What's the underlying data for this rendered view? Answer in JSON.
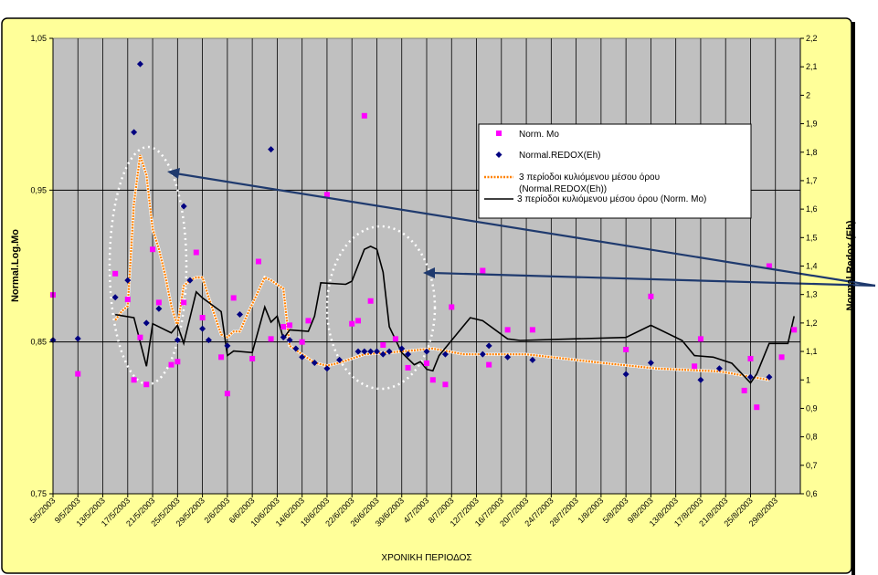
{
  "chart_data": {
    "type": "line",
    "title": "",
    "xlabel": "ΧΡΟΝΙΚΗ ΠΕΡΙΟΔΟΣ",
    "ylabel": "Normal.Log.Mo",
    "y2label": "Normal.Redox (Eh)",
    "ylim": [
      0.75,
      1.05
    ],
    "y2lim": [
      0.6,
      2.2
    ],
    "yticks": [
      "0,75",
      "0,85",
      "0,95",
      "1,05"
    ],
    "y2ticks": [
      "0,6",
      "0,7",
      "0,8",
      "0,9",
      "1",
      "1,1",
      "1,2",
      "1,3",
      "1,4",
      "1,5",
      "1,6",
      "1,7",
      "1,8",
      "1,9",
      "2",
      "2,1",
      "2,2"
    ],
    "x_start": "2003-05-05",
    "x_end": "2003-09-02",
    "x_tick_dates": [
      "2003-05-05",
      "2003-05-09",
      "2003-05-13",
      "2003-05-17",
      "2003-05-21",
      "2003-05-25",
      "2003-05-29",
      "2003-06-02",
      "2003-06-06",
      "2003-06-10",
      "2003-06-14",
      "2003-06-18",
      "2003-06-22",
      "2003-06-26",
      "2003-06-30",
      "2003-07-04",
      "2003-07-08",
      "2003-07-12",
      "2003-07-16",
      "2003-07-20",
      "2003-07-24",
      "2003-07-28",
      "2003-08-01",
      "2003-08-05",
      "2003-08-09",
      "2003-08-13",
      "2003-08-17",
      "2003-08-21",
      "2003-08-25",
      "2003-08-29"
    ],
    "x_tick_labels": [
      "5/5/2003",
      "9/5/2003",
      "13/5/2003",
      "17/5/2003",
      "21/5/2003",
      "25/5/2003",
      "29/5/2003",
      "2/6/2003",
      "6/6/2003",
      "10/6/2003",
      "14/6/2003",
      "18/6/2003",
      "22/6/2003",
      "26/6/2003",
      "30/6/2003",
      "4/7/2003",
      "8/7/2003",
      "12/7/2003",
      "16/7/2003",
      "20/7/2003",
      "24/7/2003",
      "28/7/2003",
      "1/8/2003",
      "5/8/2003",
      "9/8/2003",
      "13/8/2003",
      "17/8/2003",
      "21/8/2003",
      "25/8/2003",
      "29/8/2003"
    ],
    "grid": true,
    "legend_position": "upper-right-of-center",
    "annotations": "two dotted white ellipses with dark blue arrows pointing to them",
    "series": [
      {
        "name": "Norm. Mo",
        "kind": "scatter",
        "axis": "left",
        "marker": "square",
        "color": "#ff00ff",
        "points": [
          [
            "2003-05-05",
            0.881
          ],
          [
            "2003-05-09",
            0.829
          ],
          [
            "2003-05-15",
            0.895
          ],
          [
            "2003-05-17",
            0.878
          ],
          [
            "2003-05-18",
            0.825
          ],
          [
            "2003-05-19",
            0.853
          ],
          [
            "2003-05-20",
            0.822
          ],
          [
            "2003-05-21",
            0.911
          ],
          [
            "2003-05-22",
            0.876
          ],
          [
            "2003-05-24",
            0.835
          ],
          [
            "2003-05-25",
            0.837
          ],
          [
            "2003-05-26",
            0.876
          ],
          [
            "2003-05-28",
            0.909
          ],
          [
            "2003-05-29",
            0.866
          ],
          [
            "2003-06-01",
            0.84
          ],
          [
            "2003-06-02",
            0.816
          ],
          [
            "2003-06-03",
            0.879
          ],
          [
            "2003-06-06",
            0.839
          ],
          [
            "2003-06-07",
            0.903
          ],
          [
            "2003-06-09",
            0.852
          ],
          [
            "2003-06-11",
            0.86
          ],
          [
            "2003-06-12",
            0.861
          ],
          [
            "2003-06-14",
            0.85
          ],
          [
            "2003-06-15",
            0.864
          ],
          [
            "2003-06-18",
            0.947
          ],
          [
            "2003-06-22",
            0.862
          ],
          [
            "2003-06-23",
            0.864
          ],
          [
            "2003-06-24",
            0.999
          ],
          [
            "2003-06-25",
            0.877
          ],
          [
            "2003-06-27",
            0.848
          ],
          [
            "2003-06-29",
            0.852
          ],
          [
            "2003-07-01",
            0.833
          ],
          [
            "2003-07-04",
            0.836
          ],
          [
            "2003-07-05",
            0.825
          ],
          [
            "2003-07-07",
            0.822
          ],
          [
            "2003-07-08",
            0.873
          ],
          [
            "2003-07-13",
            0.897
          ],
          [
            "2003-07-14",
            0.835
          ],
          [
            "2003-07-17",
            0.858
          ],
          [
            "2003-07-21",
            0.858
          ],
          [
            "2003-08-05",
            0.845
          ],
          [
            "2003-08-09",
            0.88
          ],
          [
            "2003-08-16",
            0.834
          ],
          [
            "2003-08-17",
            0.852
          ],
          [
            "2003-08-24",
            0.818
          ],
          [
            "2003-08-25",
            0.839
          ],
          [
            "2003-08-26",
            0.807
          ],
          [
            "2003-08-28",
            0.9
          ],
          [
            "2003-08-30",
            0.84
          ],
          [
            "2003-09-01",
            0.858
          ]
        ]
      },
      {
        "name": "Normal.REDOX(Eh)",
        "kind": "scatter",
        "axis": "right",
        "marker": "diamond",
        "color": "#000080",
        "points": [
          [
            "2003-05-05",
            1.14
          ],
          [
            "2003-05-09",
            1.145
          ],
          [
            "2003-05-15",
            1.29
          ],
          [
            "2003-05-17",
            1.35
          ],
          [
            "2003-05-18",
            1.87
          ],
          [
            "2003-05-19",
            2.11
          ],
          [
            "2003-05-20",
            1.2
          ],
          [
            "2003-05-22",
            1.25
          ],
          [
            "2003-05-25",
            1.14
          ],
          [
            "2003-05-26",
            1.61
          ],
          [
            "2003-05-27",
            1.35
          ],
          [
            "2003-05-29",
            1.18
          ],
          [
            "2003-05-30",
            1.14
          ],
          [
            "2003-06-02",
            1.12
          ],
          [
            "2003-06-04",
            1.23
          ],
          [
            "2003-06-09",
            1.81
          ],
          [
            "2003-06-11",
            1.15
          ],
          [
            "2003-06-12",
            1.14
          ],
          [
            "2003-06-13",
            1.11
          ],
          [
            "2003-06-14",
            1.08
          ],
          [
            "2003-06-16",
            1.06
          ],
          [
            "2003-06-18",
            1.04
          ],
          [
            "2003-06-20",
            1.07
          ],
          [
            "2003-06-23",
            1.1
          ],
          [
            "2003-06-24",
            1.1
          ],
          [
            "2003-06-25",
            1.1
          ],
          [
            "2003-06-26",
            1.1
          ],
          [
            "2003-06-27",
            1.09
          ],
          [
            "2003-06-28",
            1.1
          ],
          [
            "2003-06-30",
            1.11
          ],
          [
            "2003-07-01",
            1.09
          ],
          [
            "2003-07-04",
            1.1
          ],
          [
            "2003-07-07",
            1.09
          ],
          [
            "2003-07-13",
            1.09
          ],
          [
            "2003-07-14",
            1.12
          ],
          [
            "2003-07-17",
            1.08
          ],
          [
            "2003-07-21",
            1.07
          ],
          [
            "2003-08-05",
            1.02
          ],
          [
            "2003-08-09",
            1.06
          ],
          [
            "2003-08-17",
            1.0
          ],
          [
            "2003-08-20",
            1.04
          ],
          [
            "2003-08-25",
            1.01
          ],
          [
            "2003-08-28",
            1.01
          ]
        ]
      },
      {
        "name": "3 περίοδοι κυλιόμενου μέσου όρου (Normal.REDOX(Eh))",
        "kind": "line",
        "axis": "right",
        "color": "#ff8000",
        "style": "dotted-orange",
        "points": [
          [
            "2003-05-15",
            1.21
          ],
          [
            "2003-05-16",
            1.24
          ],
          [
            "2003-05-17",
            1.26
          ],
          [
            "2003-05-18",
            1.62
          ],
          [
            "2003-05-19",
            1.79
          ],
          [
            "2003-05-20",
            1.72
          ],
          [
            "2003-05-21",
            1.53
          ],
          [
            "2003-05-22",
            1.46
          ],
          [
            "2003-05-23",
            1.37
          ],
          [
            "2003-05-24",
            1.26
          ],
          [
            "2003-05-25",
            1.19
          ],
          [
            "2003-05-26",
            1.33
          ],
          [
            "2003-05-27",
            1.35
          ],
          [
            "2003-05-28",
            1.36
          ],
          [
            "2003-05-29",
            1.36
          ],
          [
            "2003-05-30",
            1.29
          ],
          [
            "2003-06-01",
            1.16
          ],
          [
            "2003-06-02",
            1.15
          ],
          [
            "2003-06-03",
            1.17
          ],
          [
            "2003-06-04",
            1.17
          ],
          [
            "2003-06-05",
            1.22
          ],
          [
            "2003-06-08",
            1.36
          ],
          [
            "2003-06-09",
            1.35
          ],
          [
            "2003-06-11",
            1.32
          ],
          [
            "2003-06-12",
            1.12
          ],
          [
            "2003-06-14",
            1.09
          ],
          [
            "2003-06-16",
            1.06
          ],
          [
            "2003-06-18",
            1.05
          ],
          [
            "2003-06-20",
            1.06
          ],
          [
            "2003-06-24",
            1.09
          ],
          [
            "2003-06-30",
            1.1
          ],
          [
            "2003-07-05",
            1.11
          ],
          [
            "2003-07-10",
            1.09
          ],
          [
            "2003-07-20",
            1.09
          ],
          [
            "2003-08-01",
            1.06
          ],
          [
            "2003-08-10",
            1.04
          ],
          [
            "2003-08-20",
            1.03
          ],
          [
            "2003-08-28",
            1.0
          ]
        ]
      },
      {
        "name": "3 περίοδοι κυλιόμενου μέσου όρου (Norm. Mo)",
        "kind": "line",
        "axis": "left",
        "color": "#000000",
        "style": "solid",
        "points": [
          [
            "2003-05-15",
            0.868
          ],
          [
            "2003-05-18",
            0.866
          ],
          [
            "2003-05-20",
            0.834
          ],
          [
            "2003-05-21",
            0.862
          ],
          [
            "2003-05-24",
            0.856
          ],
          [
            "2003-05-25",
            0.861
          ],
          [
            "2003-05-26",
            0.849
          ],
          [
            "2003-05-28",
            0.883
          ],
          [
            "2003-05-29",
            0.879
          ],
          [
            "2003-06-01",
            0.87
          ],
          [
            "2003-06-02",
            0.841
          ],
          [
            "2003-06-03",
            0.844
          ],
          [
            "2003-06-06",
            0.843
          ],
          [
            "2003-06-08",
            0.873
          ],
          [
            "2003-06-09",
            0.863
          ],
          [
            "2003-06-10",
            0.867
          ],
          [
            "2003-06-11",
            0.852
          ],
          [
            "2003-06-12",
            0.858
          ],
          [
            "2003-06-15",
            0.857
          ],
          [
            "2003-06-16",
            0.867
          ],
          [
            "2003-06-17",
            0.889
          ],
          [
            "2003-06-21",
            0.888
          ],
          [
            "2003-06-22",
            0.89
          ],
          [
            "2003-06-24",
            0.911
          ],
          [
            "2003-06-25",
            0.913
          ],
          [
            "2003-06-26",
            0.911
          ],
          [
            "2003-06-27",
            0.896
          ],
          [
            "2003-06-28",
            0.86
          ],
          [
            "2003-06-30",
            0.843
          ],
          [
            "2003-07-02",
            0.835
          ],
          [
            "2003-07-03",
            0.837
          ],
          [
            "2003-07-04",
            0.832
          ],
          [
            "2003-07-05",
            0.831
          ],
          [
            "2003-07-06",
            0.841
          ],
          [
            "2003-07-11",
            0.866
          ],
          [
            "2003-07-13",
            0.864
          ],
          [
            "2003-07-17",
            0.852
          ],
          [
            "2003-07-19",
            0.851
          ],
          [
            "2003-08-05",
            0.853
          ],
          [
            "2003-08-09",
            0.861
          ],
          [
            "2003-08-14",
            0.851
          ],
          [
            "2003-08-16",
            0.841
          ],
          [
            "2003-08-19",
            0.84
          ],
          [
            "2003-08-22",
            0.836
          ],
          [
            "2003-08-25",
            0.823
          ],
          [
            "2003-08-26",
            0.829
          ],
          [
            "2003-08-28",
            0.849
          ],
          [
            "2003-08-31",
            0.849
          ],
          [
            "2003-09-01",
            0.867
          ]
        ]
      }
    ]
  }
}
